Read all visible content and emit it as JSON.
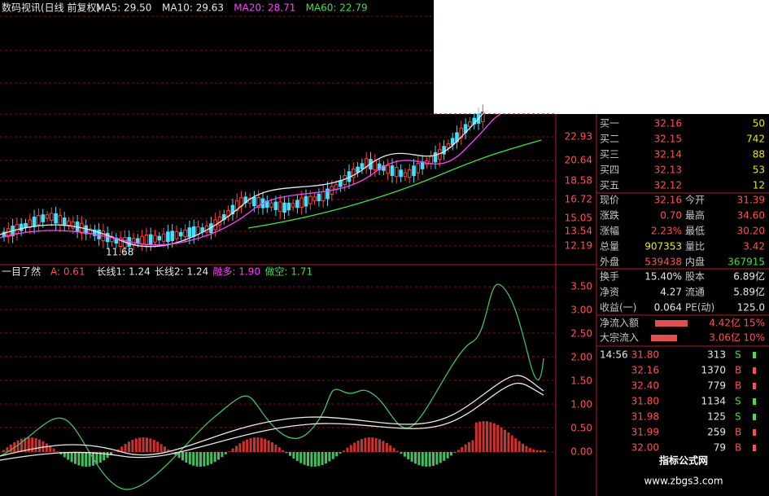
{
  "header": {
    "title": "数码视讯(日线 前复权)",
    "ma": [
      {
        "label": "MA5: 29.50",
        "color": "#e8e8e8"
      },
      {
        "label": "MA10: 29.63",
        "color": "#e8e8e8"
      },
      {
        "label": "MA20: 28.71",
        "color": "#ff40ff"
      },
      {
        "label": "MA60: 22.79",
        "color": "#40e040"
      }
    ]
  },
  "price_axis": [
    "22.93",
    "20.64",
    "18.58",
    "16.72",
    "15.05",
    "13.54",
    "12.19"
  ],
  "low_label": "11.68",
  "indicator": {
    "title": "一目了然",
    "items": [
      {
        "label": "A: 0.61",
        "color": "#ff5050"
      },
      {
        "label": "长线1: 1.24",
        "color": "#e8e8e8"
      },
      {
        "label": "长线2: 1.24",
        "color": "#e8e8e8"
      },
      {
        "label": "融多: 1.90",
        "color": "#ff40ff"
      },
      {
        "label": "做空: 1.71",
        "color": "#40e040"
      }
    ]
  },
  "indicator_axis": [
    "3.50",
    "3.00",
    "2.50",
    "2.00",
    "1.50",
    "1.00",
    "0.50",
    "0.00"
  ],
  "order_book": [
    [
      "买一",
      "32.16",
      "50"
    ],
    [
      "买二",
      "32.15",
      "742"
    ],
    [
      "买三",
      "32.14",
      "88"
    ],
    [
      "买四",
      "32.13",
      "53"
    ],
    [
      "买五",
      "32.12",
      "12"
    ]
  ],
  "stats": [
    [
      "现价",
      "32.16",
      "今开",
      "31.39"
    ],
    [
      "涨跌",
      "0.70",
      "最高",
      "34.60"
    ],
    [
      "涨幅",
      "2.23%",
      "最低",
      "30.20"
    ],
    [
      "总量",
      "907353",
      "量比",
      "3.42"
    ],
    [
      "外盘",
      "539438",
      "内盘",
      "367915"
    ]
  ],
  "fundamentals": [
    [
      "换手",
      "15.40%",
      "股本",
      "6.89亿"
    ],
    [
      "净资",
      "4.27",
      "流通",
      "5.89亿"
    ],
    [
      "收益(一)",
      "0.064",
      "PE(动)",
      "125.0"
    ]
  ],
  "flows": [
    [
      "净流入额",
      "4.42亿",
      "15%"
    ],
    [
      "大宗流入",
      "3.06亿",
      "10%"
    ]
  ],
  "ticks": {
    "time": "14:56",
    "rows": [
      [
        "31.80",
        "313",
        "S"
      ],
      [
        "32.16",
        "1370",
        "B"
      ],
      [
        "32.40",
        "779",
        "B"
      ],
      [
        "31.80",
        "1134",
        "S"
      ],
      [
        "31.98",
        "125",
        "S"
      ],
      [
        "31.99",
        "259",
        "B"
      ],
      [
        "32.00",
        "79",
        "B"
      ]
    ]
  },
  "watermark": {
    "title": "指标公式网",
    "url": "www.zbgs3.com"
  }
}
